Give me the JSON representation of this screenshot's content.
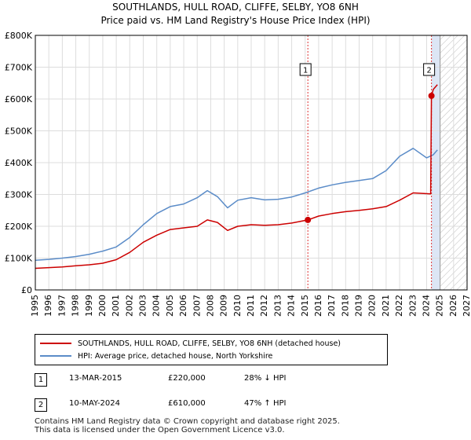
{
  "title_line1": "SOUTHLANDS, HULL ROAD, CLIFFE, SELBY, YO8 6NH",
  "title_line2": "Price paid vs. HM Land Registry's House Price Index (HPI)",
  "legend": {
    "price_label": "SOUTHLANDS, HULL ROAD, CLIFFE, SELBY, YO8 6NH (detached house)",
    "hpi_label": "HPI: Average price, detached house, North Yorkshire"
  },
  "sales": [
    {
      "id": "1",
      "date": "13-MAR-2015",
      "price": "£220,000",
      "hpi": "28% ↓ HPI"
    },
    {
      "id": "2",
      "date": "10-MAY-2024",
      "price": "£610,000",
      "hpi": "47% ↑ HPI"
    }
  ],
  "footer": {
    "line1": "Contains HM Land Registry data © Crown copyright and database right 2025.",
    "line2": "This data is licensed under the Open Government Licence v3.0."
  },
  "colors": {
    "price": "#cc0000",
    "hpi": "#5b8cc8",
    "grid": "#dddddd",
    "marker_line": "#dd3333",
    "shade": "#dde6f5"
  },
  "chart_data": {
    "type": "line",
    "xlim": [
      1995,
      2027
    ],
    "ylim": [
      0,
      800000
    ],
    "x_ticks": [
      1995,
      1996,
      1997,
      1998,
      1999,
      2000,
      2001,
      2002,
      2003,
      2004,
      2005,
      2006,
      2007,
      2008,
      2009,
      2010,
      2011,
      2012,
      2013,
      2014,
      2015,
      2016,
      2017,
      2018,
      2019,
      2020,
      2021,
      2022,
      2023,
      2024,
      2025,
      2026,
      2027
    ],
    "y_ticks": [
      0,
      100000,
      200000,
      300000,
      400000,
      500000,
      600000,
      700000,
      800000
    ],
    "y_tick_labels": [
      "£0",
      "£100K",
      "£200K",
      "£300K",
      "£400K",
      "£500K",
      "£600K",
      "£700K",
      "£800K"
    ],
    "series": [
      {
        "name": "SOUTHLANDS, HULL ROAD, CLIFFE, SELBY, YO8 6NH (detached house)",
        "x": [
          1995,
          1996,
          1997,
          1998,
          1999,
          2000,
          2001,
          2002,
          2003,
          2004,
          2005,
          2006,
          2007,
          2007.75,
          2008.5,
          2009.25,
          2010,
          2011,
          2012,
          2013,
          2014,
          2015.2,
          2016,
          2017,
          2018,
          2019,
          2020,
          2021,
          2022,
          2023,
          2024.3,
          2024.36,
          2024.5,
          2024.8
        ],
        "values": [
          68000,
          70000,
          72000,
          76000,
          79000,
          84000,
          95000,
          118000,
          150000,
          172000,
          190000,
          195000,
          200000,
          220000,
          212000,
          187000,
          200000,
          205000,
          203000,
          205000,
          210000,
          220000,
          232000,
          240000,
          246000,
          250000,
          255000,
          262000,
          282000,
          305000,
          302000,
          610000,
          630000,
          645000
        ]
      },
      {
        "name": "HPI: Average price, detached house, North Yorkshire",
        "x": [
          1995,
          1996,
          1997,
          1998,
          1999,
          2000,
          2001,
          2002,
          2003,
          2004,
          2005,
          2006,
          2007,
          2007.75,
          2008.5,
          2009.25,
          2010,
          2011,
          2012,
          2013,
          2014,
          2015,
          2016,
          2017,
          2018,
          2019,
          2020,
          2021,
          2022,
          2023,
          2024,
          2024.5,
          2024.8
        ],
        "values": [
          93000,
          96000,
          100000,
          105000,
          112000,
          122000,
          135000,
          165000,
          205000,
          240000,
          262000,
          270000,
          290000,
          312000,
          293000,
          258000,
          282000,
          290000,
          283000,
          285000,
          292000,
          305000,
          320000,
          330000,
          338000,
          344000,
          350000,
          375000,
          420000,
          445000,
          415000,
          425000,
          440000
        ]
      }
    ],
    "annotations": [
      {
        "label": "1",
        "x": 2015.2,
        "value": 220000
      },
      {
        "label": "2",
        "x": 2024.36,
        "value": 610000
      }
    ]
  }
}
